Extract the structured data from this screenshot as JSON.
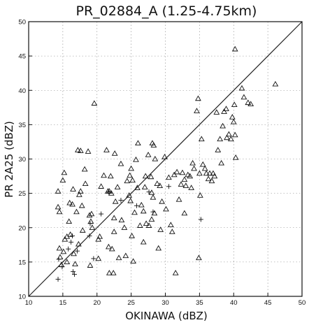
{
  "chart_data": {
    "type": "scatter",
    "title": "PR_02884_A (1.25-4.75km)",
    "xlabel": "OKINAWA (dBZ)",
    "ylabel": "PR 2A25 (dBZ)",
    "xlim": [
      10,
      50
    ],
    "ylim": [
      10,
      50
    ],
    "xticks": [
      "10",
      "15",
      "20",
      "25",
      "30",
      "35",
      "40",
      "45",
      "50"
    ],
    "yticks": [
      "10",
      "15",
      "20",
      "25",
      "30",
      "35",
      "40",
      "45",
      "50"
    ],
    "grid": true,
    "reference_line": [
      [
        10,
        10
      ],
      [
        50,
        50
      ]
    ],
    "series": [
      {
        "marker": "triangle",
        "points": [
          [
            14.3,
            23.0
          ],
          [
            14.3,
            25.3
          ],
          [
            14.5,
            22.3
          ],
          [
            14.5,
            17.0
          ],
          [
            14.6,
            15.7
          ],
          [
            14.8,
            14.6
          ],
          [
            15.0,
            26.9
          ],
          [
            15.2,
            28.0
          ],
          [
            15.1,
            16.5
          ],
          [
            15.3,
            18.3
          ],
          [
            15.6,
            18.7
          ],
          [
            15.6,
            15.0
          ],
          [
            15.9,
            20.9
          ],
          [
            16.0,
            23.6
          ],
          [
            16.1,
            19.0
          ],
          [
            16.4,
            23.4
          ],
          [
            16.5,
            25.6
          ],
          [
            16.6,
            16.2
          ],
          [
            16.8,
            14.7
          ],
          [
            17.0,
            22.3
          ],
          [
            17.2,
            31.3
          ],
          [
            17.3,
            17.6
          ],
          [
            17.4,
            24.8
          ],
          [
            17.6,
            31.2
          ],
          [
            17.6,
            25.3
          ],
          [
            17.8,
            23.2
          ],
          [
            18.2,
            28.5
          ],
          [
            18.3,
            26.4
          ],
          [
            18.7,
            31.1
          ],
          [
            18.9,
            21.8
          ],
          [
            19.0,
            14.5
          ],
          [
            19.2,
            22.0
          ],
          [
            19.3,
            20.0
          ],
          [
            19.6,
            38.1
          ],
          [
            20.2,
            18.3
          ],
          [
            20.2,
            15.5
          ],
          [
            20.6,
            26.0
          ],
          [
            21.0,
            27.6
          ],
          [
            21.4,
            31.3
          ],
          [
            21.6,
            25.3
          ],
          [
            21.7,
            17.2
          ],
          [
            21.8,
            25.3
          ],
          [
            21.8,
            13.4
          ],
          [
            22.0,
            27.5
          ],
          [
            22.1,
            25.0
          ],
          [
            22.2,
            16.9
          ],
          [
            22.4,
            13.4
          ],
          [
            22.5,
            21.4
          ],
          [
            22.6,
            30.8
          ],
          [
            22.7,
            23.8
          ],
          [
            23.0,
            25.9
          ],
          [
            23.2,
            15.6
          ],
          [
            23.5,
            29.3
          ],
          [
            23.6,
            21.1
          ],
          [
            24.0,
            20.0
          ],
          [
            24.2,
            15.9
          ],
          [
            24.4,
            26.8
          ],
          [
            24.7,
            24.7
          ],
          [
            24.8,
            27.6
          ],
          [
            24.9,
            23.9
          ],
          [
            25.0,
            28.6
          ],
          [
            25.1,
            18.8
          ],
          [
            25.2,
            26.9
          ],
          [
            25.3,
            15.1
          ],
          [
            25.5,
            22.2
          ],
          [
            25.7,
            29.9
          ],
          [
            25.9,
            25.8
          ],
          [
            26.0,
            32.3
          ],
          [
            26.3,
            20.3
          ],
          [
            26.5,
            23.3
          ],
          [
            26.8,
            22.4
          ],
          [
            27.0,
            25.9
          ],
          [
            27.1,
            27.5
          ],
          [
            27.2,
            20.6
          ],
          [
            27.5,
            30.6
          ],
          [
            27.6,
            20.3
          ],
          [
            27.9,
            27.4
          ],
          [
            28.0,
            21.2
          ],
          [
            28.1,
            32.3
          ],
          [
            28.2,
            24.4
          ],
          [
            28.3,
            32.0
          ],
          [
            28.4,
            22.1
          ],
          [
            28.5,
            30.0
          ],
          [
            28.8,
            26.4
          ],
          [
            29.0,
            17.0
          ],
          [
            29.2,
            26.1
          ],
          [
            29.3,
            19.7
          ],
          [
            29.5,
            23.8
          ],
          [
            29.9,
            30.3
          ],
          [
            30.5,
            27.3
          ],
          [
            30.8,
            20.4
          ],
          [
            31.0,
            19.4
          ],
          [
            31.3,
            27.7
          ],
          [
            31.5,
            13.4
          ],
          [
            31.7,
            28.1
          ],
          [
            32.0,
            24.1
          ],
          [
            32.3,
            26.3
          ],
          [
            32.5,
            28.0
          ],
          [
            32.8,
            27.0
          ],
          [
            33.0,
            26.1
          ],
          [
            33.3,
            27.7
          ],
          [
            33.6,
            27.5
          ],
          [
            33.8,
            25.8
          ],
          [
            34.0,
            29.4
          ],
          [
            34.2,
            28.6
          ],
          [
            34.6,
            37.0
          ],
          [
            34.8,
            38.8
          ],
          [
            34.9,
            15.6
          ],
          [
            35.0,
            27.9
          ],
          [
            35.1,
            24.7
          ],
          [
            35.3,
            32.9
          ],
          [
            35.5,
            29.2
          ],
          [
            35.8,
            28.6
          ],
          [
            36.0,
            27.9
          ],
          [
            36.3,
            27.1
          ],
          [
            36.5,
            27.9
          ],
          [
            36.8,
            26.8
          ],
          [
            37.0,
            27.9
          ],
          [
            37.2,
            27.5
          ],
          [
            37.5,
            36.8
          ],
          [
            37.7,
            31.3
          ],
          [
            38.0,
            32.9
          ],
          [
            38.2,
            29.4
          ],
          [
            38.4,
            34.8
          ],
          [
            38.6,
            36.9
          ],
          [
            38.9,
            37.3
          ],
          [
            39.0,
            33.1
          ],
          [
            39.3,
            33.6
          ],
          [
            39.6,
            32.9
          ],
          [
            39.8,
            36.1
          ],
          [
            40.0,
            35.4
          ],
          [
            40.1,
            37.9
          ],
          [
            40.2,
            33.5
          ],
          [
            40.3,
            30.2
          ],
          [
            40.2,
            46.0
          ],
          [
            41.2,
            40.3
          ],
          [
            41.5,
            39.0
          ],
          [
            42.1,
            38.2
          ],
          [
            42.5,
            38.0
          ],
          [
            46.1,
            40.9
          ],
          [
            17.9,
            19.6
          ],
          [
            19.1,
            20.9
          ],
          [
            20.4,
            18.7
          ],
          [
            22.5,
            19.4
          ],
          [
            26.8,
            17.9
          ],
          [
            28.0,
            25.1
          ],
          [
            30.1,
            22.7
          ],
          [
            32.8,
            22.1
          ]
        ]
      },
      {
        "marker": "plus",
        "points": [
          [
            14.3,
            12.5
          ],
          [
            14.4,
            15.4
          ],
          [
            14.9,
            14.3
          ],
          [
            15.8,
            16.9
          ],
          [
            16.2,
            17.9
          ],
          [
            16.4,
            18.8
          ],
          [
            16.5,
            13.6
          ],
          [
            16.7,
            13.2
          ],
          [
            17.1,
            16.6
          ],
          [
            18.9,
            18.8
          ],
          [
            19.0,
            20.6
          ],
          [
            19.5,
            15.5
          ],
          [
            20.6,
            22.0
          ],
          [
            21.7,
            25.2
          ],
          [
            23.5,
            24.0
          ],
          [
            25.8,
            23.2
          ],
          [
            27.6,
            25.2
          ],
          [
            28.2,
            22.3
          ],
          [
            30.5,
            26.0
          ],
          [
            35.2,
            21.2
          ]
        ]
      }
    ]
  }
}
